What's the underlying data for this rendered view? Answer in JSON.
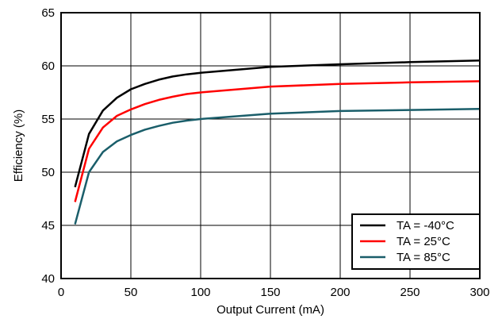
{
  "chart_data": {
    "type": "line",
    "title": "",
    "xlabel": "Output Current (mA)",
    "ylabel": "Efficiency (%)",
    "xlim": [
      0,
      300
    ],
    "ylim": [
      40,
      65
    ],
    "xticks": [
      0,
      50,
      100,
      150,
      200,
      250,
      300
    ],
    "yticks": [
      40,
      45,
      50,
      55,
      60,
      65
    ],
    "grid": true,
    "legend_position": "bottom-right",
    "series": [
      {
        "name": "TA = -40°C",
        "color": "#000000",
        "x": [
          10,
          20,
          30,
          40,
          50,
          60,
          70,
          80,
          90,
          100,
          150,
          200,
          250,
          300
        ],
        "y": [
          48.6,
          53.6,
          55.8,
          57.0,
          57.8,
          58.3,
          58.7,
          59.0,
          59.2,
          59.35,
          59.9,
          60.15,
          60.35,
          60.5
        ]
      },
      {
        "name": "TA = 25°C",
        "color": "#ff0000",
        "x": [
          10,
          20,
          30,
          40,
          50,
          60,
          70,
          80,
          90,
          100,
          150,
          200,
          250,
          300
        ],
        "y": [
          47.2,
          52.2,
          54.2,
          55.3,
          55.9,
          56.4,
          56.8,
          57.1,
          57.35,
          57.5,
          58.05,
          58.3,
          58.45,
          58.55
        ]
      },
      {
        "name": "TA = 85°C",
        "color": "#1a5e6a",
        "x": [
          10,
          20,
          30,
          40,
          50,
          60,
          70,
          80,
          90,
          100,
          150,
          200,
          250,
          300
        ],
        "y": [
          45.1,
          50.0,
          51.9,
          52.9,
          53.5,
          54.0,
          54.35,
          54.65,
          54.85,
          55.0,
          55.5,
          55.75,
          55.85,
          55.95
        ]
      }
    ]
  }
}
